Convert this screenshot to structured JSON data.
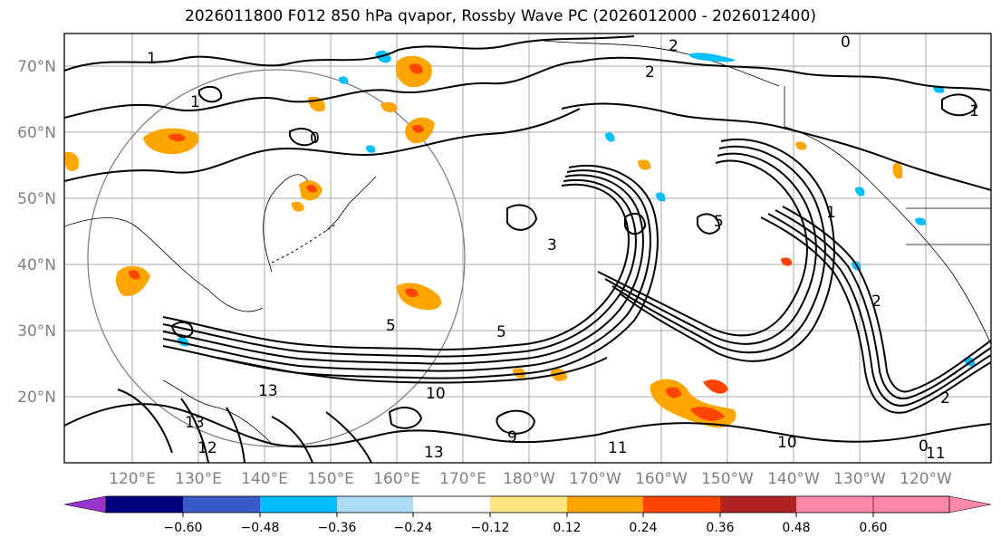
{
  "title": "2026011800 F012 850 hPa qvapor, Rossby Wave PC (2026012000 - 2026012400)",
  "latitude_labels": [
    "70°N",
    "60°N",
    "50°N",
    "40°N",
    "30°N",
    "20°N"
  ],
  "longitude_labels": [
    "120°E",
    "130°E",
    "140°E",
    "150°E",
    "160°E",
    "170°E",
    "180°W",
    "170°W",
    "160°W",
    "150°W",
    "140°W",
    "130°W",
    "120°W"
  ],
  "colorbar": {
    "tick_labels": [
      "−0.60",
      "−0.48",
      "−0.36",
      "−0.24",
      "−0.12",
      "0.12",
      "0.24",
      "0.36",
      "0.48",
      "0.60"
    ],
    "colors": [
      "#9933cc",
      "#000080",
      "#3a5ac8",
      "#00bfff",
      "#aadcf8",
      "#ffffff",
      "#ffe680",
      "#ffa500",
      "#ff4500",
      "#b22222",
      "#ff88aa"
    ]
  },
  "contour_labels": [
    "2",
    "1",
    "0",
    "1",
    "2",
    "3",
    "5",
    "0",
    "5",
    "5",
    "13",
    "13",
    "11",
    "10",
    "11",
    "10",
    "9",
    "13",
    "12",
    "1",
    "2",
    "0",
    "1",
    "2"
  ],
  "colors": {
    "grid": "#aaaaaa",
    "contour": "#000000",
    "circle": "#808080",
    "label": "#808080"
  }
}
